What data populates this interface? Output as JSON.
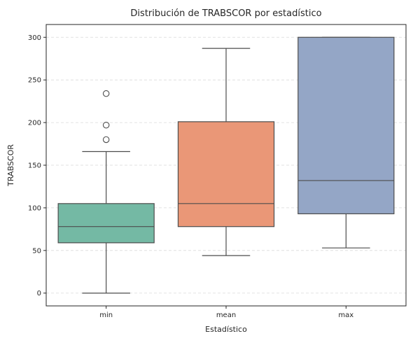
{
  "chart_data": {
    "type": "box",
    "title": "Distribución de TRABSCOR por estadístico",
    "xlabel": "Estadístico",
    "ylabel": "TRABSCOR",
    "categories": [
      "min",
      "mean",
      "max"
    ],
    "ylim": [
      -15,
      315
    ],
    "yticks": [
      0,
      50,
      100,
      150,
      200,
      250,
      300
    ],
    "grid": "y-dashed",
    "boxes": [
      {
        "name": "min",
        "color": "#74b9a4",
        "whisker_low": 0,
        "q1": 59,
        "median": 78,
        "q3": 105,
        "whisker_high": 166,
        "outliers": [
          180,
          197,
          234
        ]
      },
      {
        "name": "mean",
        "color": "#ea9777",
        "whisker_low": 44,
        "q1": 78,
        "median": 105,
        "q3": 201,
        "whisker_high": 287,
        "outliers": []
      },
      {
        "name": "max",
        "color": "#94a6c6",
        "whisker_low": 53,
        "q1": 93,
        "median": 132,
        "q3": 300,
        "whisker_high": 300,
        "outliers": []
      }
    ]
  }
}
